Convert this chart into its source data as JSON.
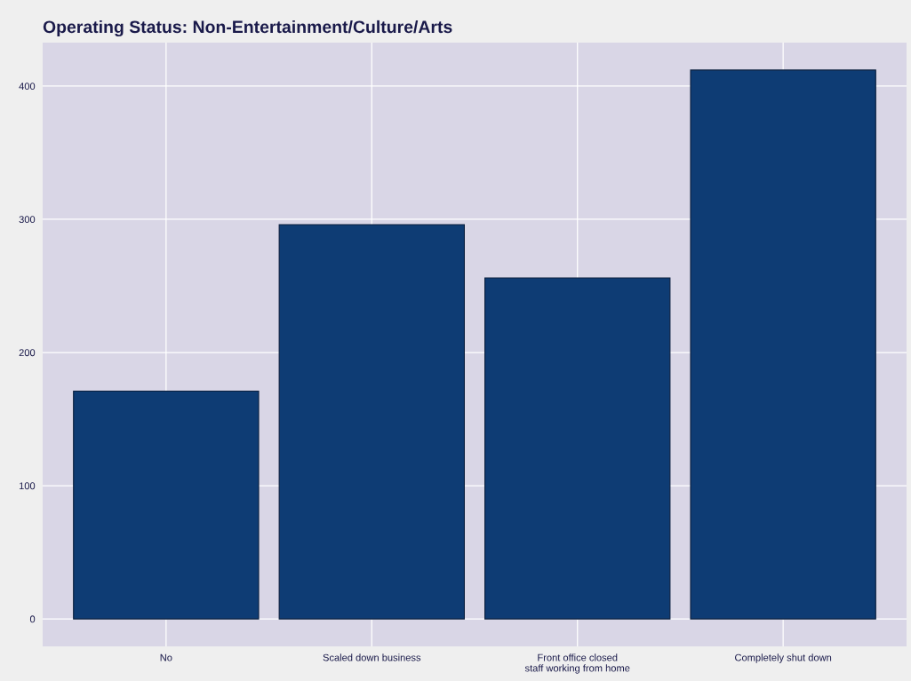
{
  "chart_data": {
    "type": "bar",
    "title": "Operating Status: Non-Entertainment/Culture/Arts",
    "categories": [
      "No",
      "Scaled down business",
      "Front office closed\nstaff working from home",
      "Completely shut down"
    ],
    "values": [
      171,
      296,
      256,
      412
    ],
    "color": "#0e3c74",
    "ylim": [
      -20.6,
      432.6
    ],
    "yticks": [
      0,
      100,
      200,
      300,
      400
    ],
    "grid": true
  }
}
